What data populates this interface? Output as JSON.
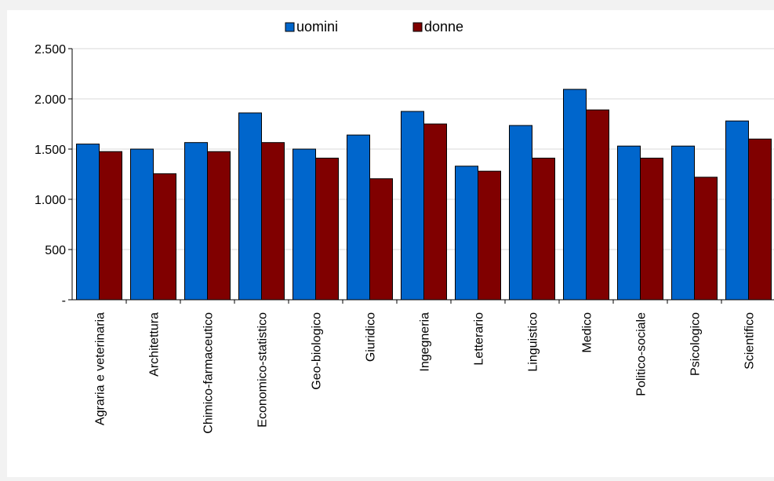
{
  "chart_data": {
    "type": "bar",
    "categories": [
      "Agraria e veterinaria",
      "Architettura",
      "Chimico-farmaceutico",
      "Economico-statistico",
      "Geo-biologico",
      "Giuridico",
      "Ingegneria",
      "Letterario",
      "Linguistico",
      "Medico",
      "Politico-sociale",
      "Psicologico",
      "Scientifico"
    ],
    "series": [
      {
        "name": "uomini",
        "color": "#0066cc",
        "values": [
          1550,
          1500,
          1565,
          1860,
          1500,
          1640,
          1875,
          1330,
          1735,
          2095,
          1530,
          1530,
          1780
        ]
      },
      {
        "name": "donne",
        "color": "#800000",
        "values": [
          1475,
          1255,
          1475,
          1565,
          1410,
          1205,
          1750,
          1280,
          1410,
          1890,
          1410,
          1220,
          1600
        ]
      }
    ],
    "ylim": [
      0,
      2500
    ],
    "yticks": [
      0,
      500,
      1000,
      1500,
      2000,
      2500
    ],
    "ytick_labels": [
      "-",
      "500",
      "1.000",
      "1.500",
      "2.000",
      "2.500"
    ],
    "grid": true,
    "legend_position": "top"
  }
}
